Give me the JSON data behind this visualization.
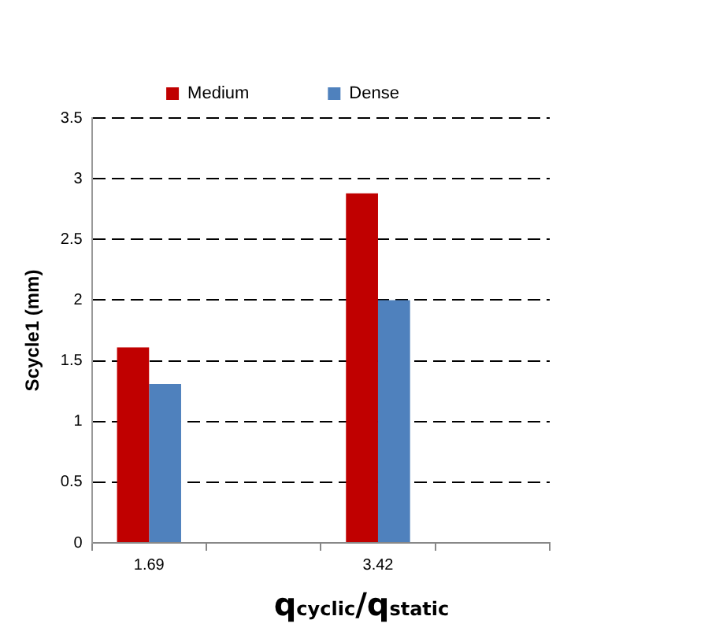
{
  "chart_data": {
    "type": "bar",
    "xlabel": "q$_{cyclic}$/q$_{static}$",
    "ylabel": "Scycle1 (mm)",
    "categories": [
      "1.69",
      null,
      "3.42",
      null
    ],
    "series": [
      {
        "name": "Medium",
        "color": "#c00000",
        "values": [
          1.61,
          null,
          2.88,
          null
        ]
      },
      {
        "name": "Dense",
        "color": "#4f81bd",
        "values": [
          1.31,
          null,
          2.0,
          null
        ]
      }
    ],
    "ylim": [
      0,
      3.5
    ],
    "yticks": [
      0,
      0.5,
      1,
      1.5,
      2,
      2.5,
      3,
      3.5
    ],
    "grid": "y",
    "legend": "top"
  }
}
